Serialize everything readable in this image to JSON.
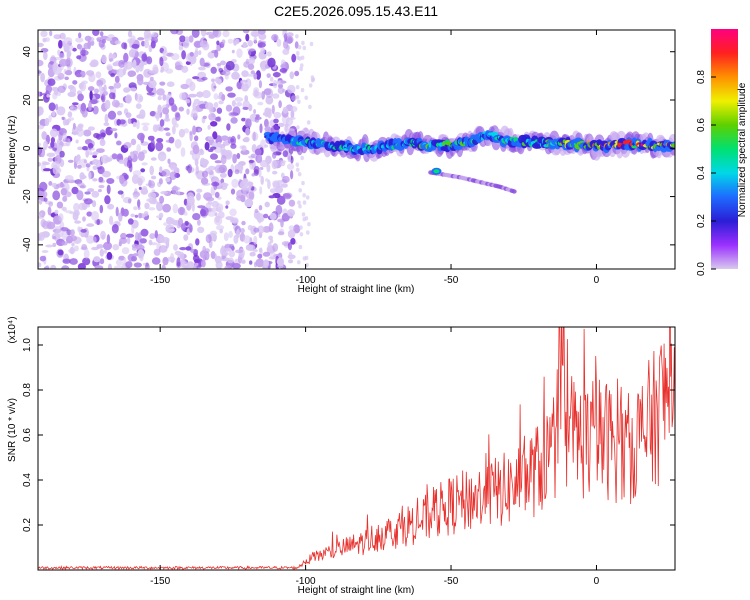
{
  "title": "C2E5.2026.095.15.43.E11",
  "colors": {
    "series": "#e8302c",
    "axis": "#000000"
  },
  "chart_data": [
    {
      "type": "heatmap",
      "xlabel": "Height of straight line (km)",
      "ylabel": "Frequency (Hz)",
      "xlim": [
        -192,
        27
      ],
      "ylim": [
        -50,
        49
      ],
      "xticks": [
        -150,
        -100,
        -50,
        0
      ],
      "yticks": [
        -40,
        -20,
        0,
        20,
        40
      ],
      "colorbar": {
        "label": "Normalized spectral amplitude",
        "range": [
          0.0,
          1.0
        ],
        "ticks": [
          0.0,
          0.2,
          0.4,
          0.6,
          0.8
        ],
        "colors": [
          "#cfcfe0",
          "#9b30ff",
          "#2a1ed6",
          "#1e6bff",
          "#00d8e8",
          "#00e070",
          "#5ed000",
          "#f0f000",
          "#ff9000",
          "#ff2020",
          "#ff0080"
        ]
      },
      "noise_region_x": [
        -192,
        -103
      ],
      "ridge": {
        "x": [
          -113,
          -105,
          -95,
          -85,
          -75,
          -65,
          -55,
          -45,
          -37,
          -30,
          -20,
          -10,
          0,
          10,
          20,
          27
        ],
        "y": [
          5,
          3,
          2,
          0,
          0,
          2,
          1,
          2,
          6,
          3,
          2,
          2,
          1,
          2,
          1,
          1
        ],
        "amplitude": [
          0.3,
          0.45,
          0.5,
          0.55,
          0.45,
          0.55,
          0.6,
          0.55,
          0.4,
          0.55,
          0.55,
          0.75,
          0.9,
          0.85,
          0.9,
          0.8
        ]
      },
      "branch": {
        "x": [
          -57,
          -47,
          -40,
          -33,
          -28
        ],
        "y": [
          -10,
          -12,
          -14,
          -16,
          -18
        ]
      }
    },
    {
      "type": "line",
      "xlabel": "Height of straight line (km)",
      "ylabel": "SNR (10 * v/v)",
      "scale_note": "(x10⁴)",
      "xlim": [
        -192,
        27
      ],
      "ylim": [
        0,
        1.08
      ],
      "xticks": [
        -150,
        -100,
        -50,
        0
      ],
      "yticks": [
        0.2,
        0.4,
        0.6,
        0.8,
        1.0
      ],
      "series": [
        {
          "x": [
            -192,
            -170,
            -150,
            -130,
            -110,
            -103,
            -100,
            -95,
            -90,
            -85,
            -80,
            -75,
            -70,
            -65,
            -60,
            -55,
            -50,
            -45,
            -40,
            -35,
            -30,
            -25,
            -20,
            -15,
            -12,
            -10,
            -5,
            0,
            5,
            10,
            15,
            20,
            25,
            27
          ],
          "y": [
            0.01,
            0.01,
            0.01,
            0.01,
            0.01,
            0.01,
            0.04,
            0.07,
            0.09,
            0.11,
            0.13,
            0.16,
            0.18,
            0.21,
            0.23,
            0.27,
            0.3,
            0.32,
            0.34,
            0.36,
            0.38,
            0.42,
            0.47,
            0.55,
            0.75,
            0.65,
            0.6,
            0.62,
            0.6,
            0.55,
            0.62,
            0.7,
            0.85,
            0.88
          ]
        }
      ]
    }
  ]
}
